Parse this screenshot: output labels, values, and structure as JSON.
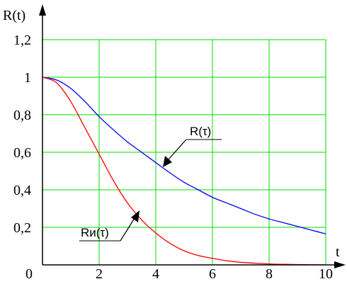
{
  "chart_data": {
    "type": "line",
    "xlabel": "t",
    "ylabel": "R(t)",
    "xlim": [
      0,
      10
    ],
    "ylim": [
      0,
      1.2
    ],
    "x_ticks": [
      2,
      4,
      6,
      8,
      10
    ],
    "x_tick_labels": [
      "2",
      "4",
      "6",
      "8",
      "10"
    ],
    "y_ticks": [
      0.2,
      0.4,
      0.6,
      0.8,
      1,
      1.2
    ],
    "y_tick_labels": [
      "0,2",
      "0,4",
      "0,6",
      "0,8",
      "1",
      "1,2"
    ],
    "origin_label": "0",
    "grid": true,
    "series": [
      {
        "name": "R(τ)",
        "color": "#0000ff",
        "x": [
          0,
          0.5,
          1,
          1.5,
          2,
          2.5,
          3,
          3.5,
          4,
          4.5,
          5,
          5.5,
          6,
          6.5,
          7,
          7.5,
          8,
          8.5,
          9,
          9.5,
          10
        ],
        "y": [
          1.0,
          0.985,
          0.94,
          0.87,
          0.79,
          0.72,
          0.655,
          0.6,
          0.545,
          0.49,
          0.44,
          0.4,
          0.36,
          0.33,
          0.3,
          0.27,
          0.245,
          0.225,
          0.205,
          0.185,
          0.165
        ]
      },
      {
        "name": "Rи(τ)",
        "color": "#ff0000",
        "x": [
          0,
          0.5,
          1,
          1.5,
          2,
          2.5,
          3,
          3.5,
          4,
          4.5,
          5,
          5.5,
          6,
          6.5,
          7,
          7.5,
          8,
          8.5,
          9,
          9.5,
          10
        ],
        "y": [
          1.0,
          0.97,
          0.87,
          0.73,
          0.59,
          0.45,
          0.33,
          0.24,
          0.17,
          0.115,
          0.075,
          0.05,
          0.035,
          0.022,
          0.014,
          0.009,
          0.005,
          0.003,
          0.002,
          0.001,
          0.0
        ]
      }
    ],
    "annotations": [
      {
        "text": "R(τ)",
        "series": 0
      },
      {
        "text": "Rи(τ)",
        "series": 1
      }
    ]
  }
}
